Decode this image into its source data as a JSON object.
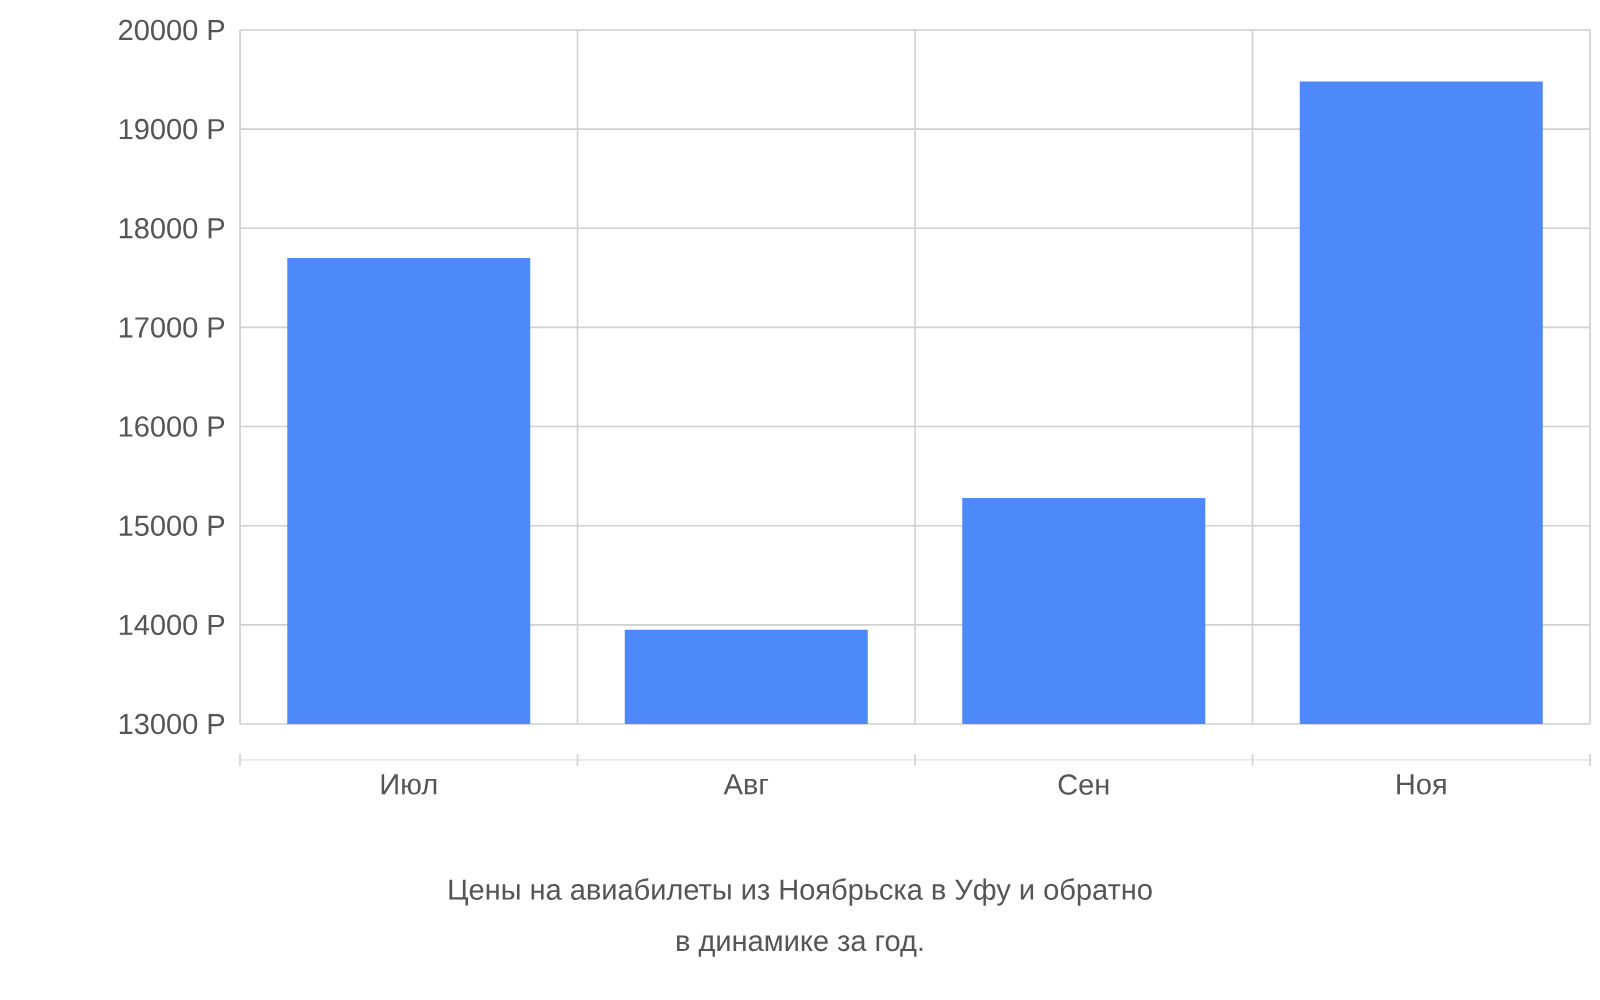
{
  "chart_data": {
    "type": "bar",
    "categories": [
      "Июл",
      "Авг",
      "Сен",
      "Ноя"
    ],
    "values": [
      17700,
      13950,
      15280,
      19480
    ],
    "color": "#4d89f9",
    "ylim": [
      13000,
      20000
    ],
    "yticks": [
      {
        "value": 13000,
        "label": "13000 Р"
      },
      {
        "value": 14000,
        "label": "14000 Р"
      },
      {
        "value": 15000,
        "label": "15000 Р"
      },
      {
        "value": 16000,
        "label": "16000 Р"
      },
      {
        "value": 17000,
        "label": "17000 Р"
      },
      {
        "value": 18000,
        "label": "18000 Р"
      },
      {
        "value": 19000,
        "label": "19000 Р"
      },
      {
        "value": 20000,
        "label": "20000 Р"
      }
    ],
    "grid": true,
    "annotations": [
      "Цены на авиабилеты из Ноябрьска в Уфу и обратно",
      "в динамике за год."
    ]
  }
}
